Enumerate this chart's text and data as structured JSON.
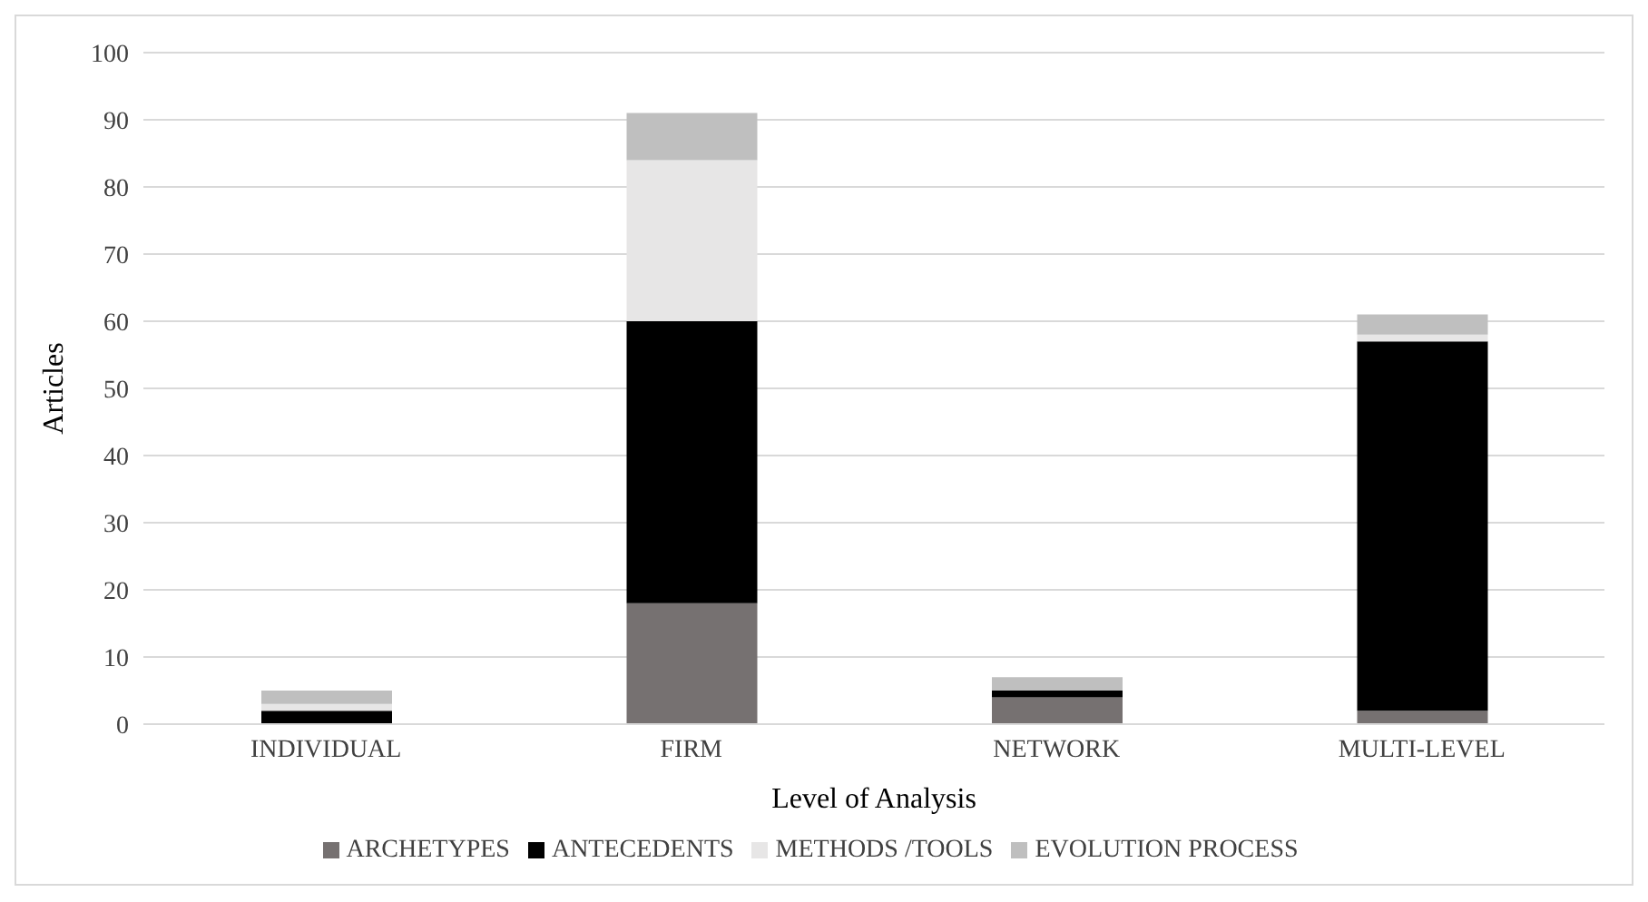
{
  "chart_data": {
    "type": "bar",
    "stacked": true,
    "xlabel": "Level of Analysis",
    "ylabel": "Articles",
    "categories": [
      "INDIVIDUAL",
      "FIRM",
      "NETWORK",
      "MULTI-LEVEL"
    ],
    "series": [
      {
        "name": "ARCHETYPES",
        "color": "#767171",
        "values": [
          0,
          18,
          4,
          2
        ]
      },
      {
        "name": "ANTECEDENTS",
        "color": "#000000",
        "values": [
          2,
          42,
          1,
          55
        ]
      },
      {
        "name": "METHODS /TOOLS",
        "color": "#e7e6e6",
        "values": [
          1,
          24,
          0,
          1
        ]
      },
      {
        "name": "EVOLUTION PROCESS",
        "color": "#bfbfbf",
        "values": [
          2,
          7,
          2,
          3
        ]
      }
    ],
    "ylim": [
      0,
      100
    ],
    "yticks": [
      0,
      10,
      20,
      30,
      40,
      50,
      60,
      70,
      80,
      90,
      100
    ],
    "grid": "y",
    "legend": "bottom"
  }
}
